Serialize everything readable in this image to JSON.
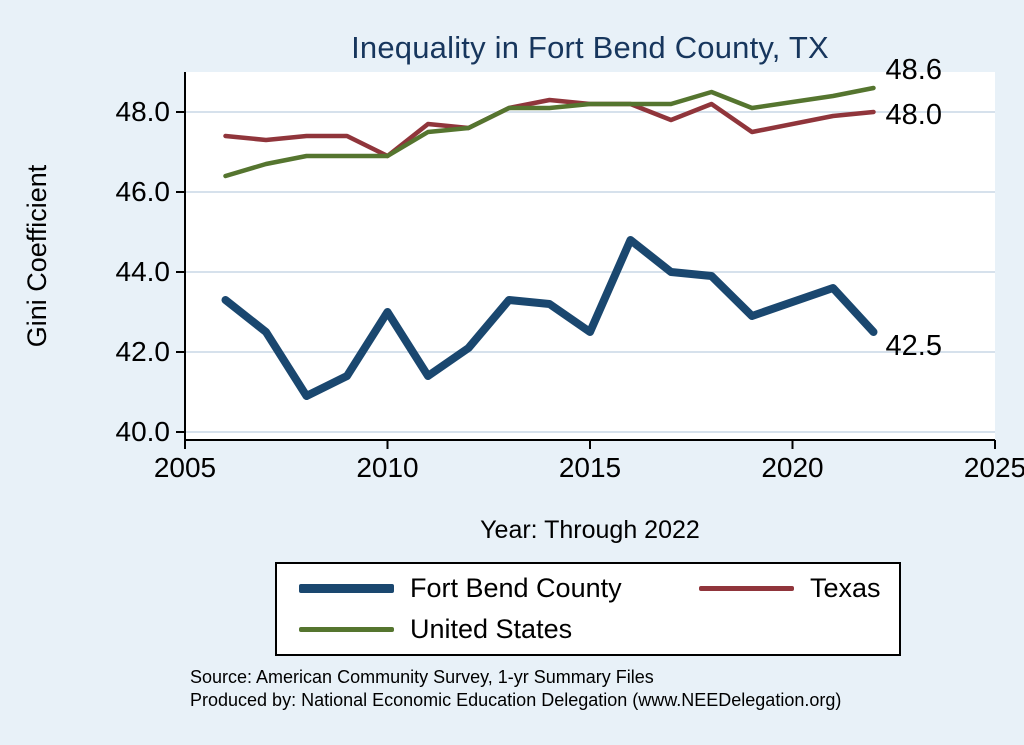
{
  "title": "Inequality in Fort Bend County, TX",
  "y_axis_label": "Gini Coefficient",
  "x_axis_label": "Year: Through 2022",
  "source_line1": "Source: American Community Survey, 1-yr Summary Files",
  "source_line2": "Produced by: National Economic Education Delegation (www.NEEDelegation.org)",
  "colors": {
    "background": "#e8f1f8",
    "plot_background": "#ffffff",
    "title": "#17365d",
    "grid": "#c9d7e5",
    "axis": "#000000"
  },
  "chart_data": {
    "type": "line",
    "title": "Inequality in Fort Bend County, TX",
    "xlabel": "Year: Through 2022",
    "ylabel": "Gini Coefficient",
    "xlim": [
      2005,
      2025
    ],
    "ylim": [
      39.8,
      49.0
    ],
    "grid": true,
    "legend_position": "bottom",
    "x": [
      2006,
      2007,
      2008,
      2009,
      2010,
      2011,
      2012,
      2013,
      2014,
      2015,
      2016,
      2017,
      2018,
      2019,
      2021,
      2022
    ],
    "x_ticks": [
      2005,
      2010,
      2015,
      2020,
      2025
    ],
    "x_tick_labels": [
      "2005",
      "2010",
      "2015",
      "2020",
      "2025"
    ],
    "y_ticks": [
      40,
      42,
      44,
      46,
      48
    ],
    "y_tick_labels": [
      "40.0",
      "42.0",
      "44.0",
      "46.0",
      "48.0"
    ],
    "series": [
      {
        "name": "Fort Bend County",
        "color": "#1a476f",
        "end_label": "42.5",
        "values": [
          43.3,
          42.5,
          40.9,
          41.4,
          43.0,
          41.4,
          42.1,
          43.3,
          43.2,
          42.5,
          44.8,
          44.0,
          43.9,
          42.9,
          43.6,
          42.5
        ]
      },
      {
        "name": "Texas",
        "color": "#90353b",
        "end_label": "48.0",
        "values": [
          47.4,
          47.3,
          47.4,
          47.4,
          46.9,
          47.7,
          47.6,
          48.1,
          48.3,
          48.2,
          48.2,
          47.8,
          48.2,
          47.5,
          47.9,
          48.0
        ]
      },
      {
        "name": "United States",
        "color": "#55752f",
        "end_label": "48.6",
        "values": [
          46.4,
          46.7,
          46.9,
          46.9,
          46.9,
          47.5,
          47.6,
          48.1,
          48.1,
          48.2,
          48.2,
          48.2,
          48.5,
          48.1,
          48.4,
          48.6
        ]
      }
    ]
  }
}
